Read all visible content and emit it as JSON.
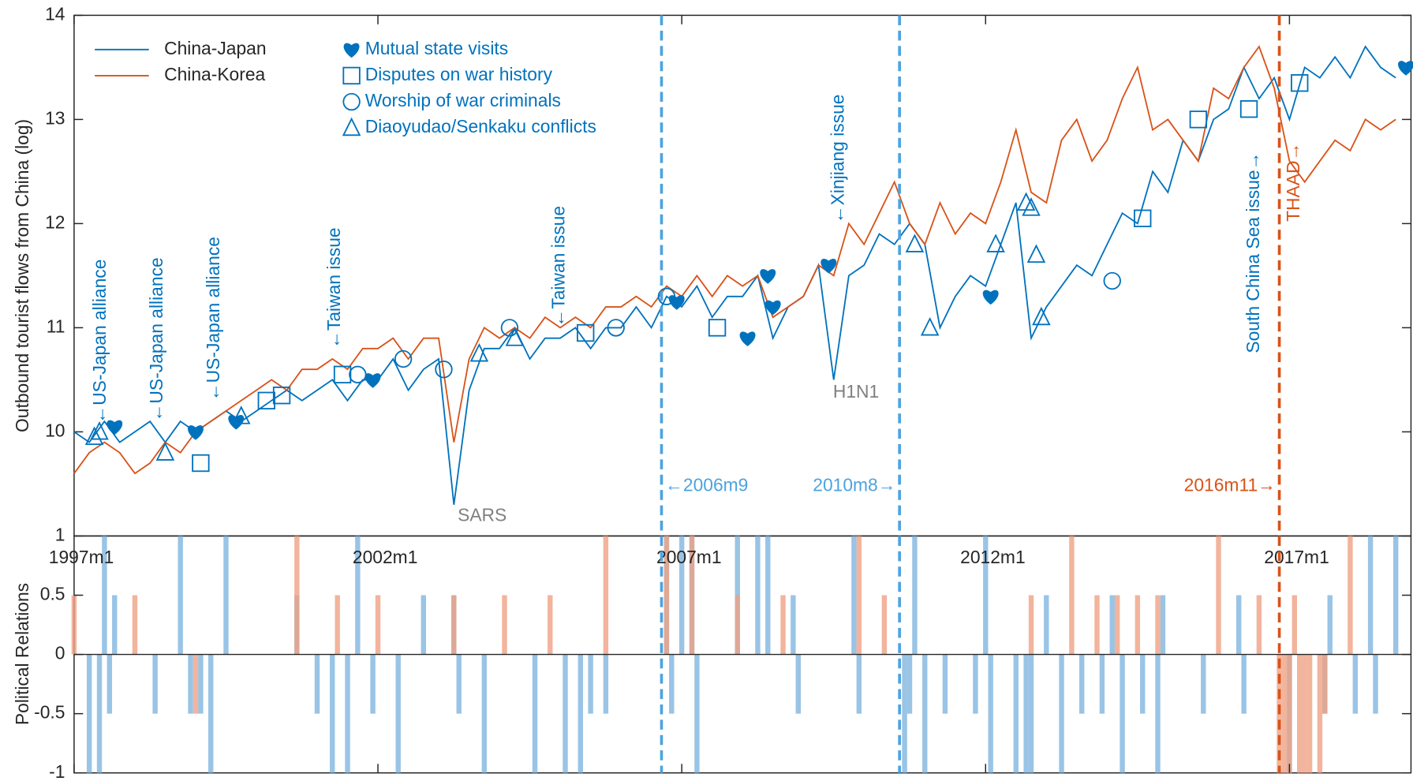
{
  "chart_data": [
    {
      "type": "line",
      "y_label": "Outbound tourist flows from China (log)",
      "xlim": [
        0,
        264
      ],
      "ylim": [
        9,
        14
      ],
      "yticks": [
        10,
        11,
        12,
        13,
        14
      ],
      "x": [
        0,
        3,
        6,
        9,
        12,
        15,
        18,
        21,
        24,
        27,
        30,
        33,
        36,
        39,
        42,
        45,
        48,
        51,
        54,
        57,
        60,
        63,
        66,
        69,
        72,
        75,
        78,
        81,
        84,
        87,
        90,
        93,
        96,
        99,
        102,
        105,
        108,
        111,
        114,
        117,
        120,
        123,
        126,
        129,
        132,
        135,
        138,
        141,
        144,
        147,
        150,
        153,
        156,
        159,
        162,
        165,
        168,
        171,
        174,
        177,
        180,
        183,
        186,
        189,
        192,
        195,
        198,
        201,
        204,
        207,
        210,
        213,
        216,
        219,
        222,
        225,
        228,
        231,
        234,
        237,
        240,
        243,
        246,
        249,
        252,
        255,
        258,
        261
      ],
      "series": [
        {
          "name": "China-Japan",
          "color": "#0072BD",
          "values": [
            10.0,
            9.9,
            10.1,
            9.9,
            10.0,
            10.1,
            9.9,
            10.1,
            10.0,
            10.1,
            10.2,
            10.1,
            10.2,
            10.3,
            10.4,
            10.3,
            10.4,
            10.5,
            10.3,
            10.5,
            10.5,
            10.7,
            10.4,
            10.6,
            10.7,
            9.3,
            10.4,
            10.8,
            10.8,
            11.0,
            10.7,
            10.9,
            10.9,
            11.0,
            10.8,
            11.0,
            11.0,
            11.2,
            11.0,
            11.3,
            11.2,
            11.4,
            11.1,
            11.3,
            11.3,
            11.5,
            10.9,
            11.2,
            11.3,
            11.6,
            10.5,
            11.5,
            11.6,
            11.9,
            11.8,
            12.0,
            11.8,
            11.0,
            11.3,
            11.5,
            11.4,
            11.8,
            12.2,
            10.9,
            11.2,
            11.4,
            11.6,
            11.5,
            11.8,
            12.1,
            12.0,
            12.5,
            12.3,
            12.8,
            12.6,
            13.0,
            13.1,
            13.5,
            13.2,
            13.4,
            13.0,
            13.5,
            13.4,
            13.6,
            13.4,
            13.7,
            13.5,
            13.4
          ]
        },
        {
          "name": "China-Korea",
          "color": "#D95319",
          "values": [
            9.6,
            9.8,
            9.9,
            9.8,
            9.6,
            9.7,
            9.9,
            9.8,
            10.0,
            10.1,
            10.2,
            10.3,
            10.4,
            10.5,
            10.4,
            10.6,
            10.6,
            10.7,
            10.6,
            10.8,
            10.8,
            10.9,
            10.7,
            10.9,
            10.9,
            9.9,
            10.7,
            11.0,
            10.9,
            11.0,
            10.9,
            11.1,
            11.0,
            11.1,
            11.0,
            11.2,
            11.2,
            11.3,
            11.2,
            11.4,
            11.3,
            11.5,
            11.3,
            11.5,
            11.4,
            11.5,
            11.1,
            11.2,
            11.3,
            11.6,
            11.5,
            12.0,
            11.8,
            12.1,
            12.4,
            12.0,
            11.8,
            12.2,
            11.9,
            12.1,
            12.0,
            12.4,
            12.9,
            12.3,
            12.2,
            12.8,
            13.0,
            12.6,
            12.8,
            13.2,
            13.5,
            12.9,
            13.0,
            12.8,
            12.6,
            13.3,
            13.2,
            13.5,
            13.7,
            13.3,
            12.6,
            12.4,
            12.6,
            12.8,
            12.7,
            13.0,
            12.9,
            13.0
          ]
        }
      ],
      "markers": [
        {
          "name": "Mutual state visits",
          "marker": "heart",
          "color": "#0072BD",
          "x": [
            8,
            24,
            32,
            59,
            119,
            133,
            137,
            138,
            149,
            181,
            263
          ],
          "values": [
            10.05,
            10.0,
            10.1,
            10.5,
            11.25,
            10.9,
            11.5,
            11.2,
            11.6,
            11.3,
            13.5
          ]
        },
        {
          "name": "Disputes on war history",
          "marker": "square",
          "color": "#0072BD",
          "x": [
            25,
            38,
            41,
            53,
            101,
            127,
            211,
            222,
            232,
            242
          ],
          "values": [
            9.7,
            10.3,
            10.35,
            10.55,
            10.95,
            11.0,
            12.05,
            13.0,
            13.1,
            13.35
          ]
        },
        {
          "name": "Worship of war criminals",
          "marker": "circle",
          "color": "#0072BD",
          "x": [
            56,
            65,
            73,
            86,
            107,
            117,
            205
          ],
          "values": [
            10.55,
            10.7,
            10.6,
            11.0,
            11.0,
            11.3,
            11.45
          ]
        },
        {
          "name": "Diaoyudao/Senkaku conflicts",
          "marker": "triangle",
          "color": "#0072BD",
          "x": [
            4,
            5,
            18,
            33,
            80,
            87,
            166,
            169,
            182,
            188,
            189,
            190,
            191
          ],
          "values": [
            9.95,
            10.0,
            9.8,
            10.15,
            10.75,
            10.9,
            11.8,
            11.0,
            11.8,
            12.2,
            12.15,
            11.7,
            11.1
          ]
        }
      ],
      "vlines": [
        {
          "x": 116,
          "label": "←2006m9",
          "color": "#4DA3DF"
        },
        {
          "x": 163,
          "label": "2010m8→",
          "color": "#4DA3DF"
        },
        {
          "x": 238,
          "label": "2016m11→",
          "color": "#D95319"
        }
      ],
      "annotations": [
        {
          "text": "←US-Japan alliance",
          "color": "#0072BD"
        },
        {
          "text": "←US-Japan alliance",
          "color": "#0072BD"
        },
        {
          "text": "←US-Japan alliance",
          "color": "#0072BD"
        },
        {
          "text": "←Taiwan issue",
          "color": "#0072BD"
        },
        {
          "text": "←Taiwan issue",
          "color": "#0072BD"
        },
        {
          "text": "←Xinjiang issue",
          "color": "#0072BD"
        },
        {
          "text": "South China Sea issue→",
          "color": "#0072BD"
        },
        {
          "text": "THAAD→",
          "color": "#D95319"
        },
        {
          "text": "SARS",
          "color": "#808080"
        },
        {
          "text": "H1N1",
          "color": "#808080"
        }
      ]
    },
    {
      "type": "bar",
      "y_label": "Political Relations",
      "xlim": [
        0,
        264
      ],
      "ylim": [
        -1,
        1
      ],
      "yticks": [
        -1,
        -0.5,
        0,
        0.5,
        1
      ],
      "xticks": [
        {
          "value": 0,
          "label": "1997m1"
        },
        {
          "value": 60,
          "label": "2002m1"
        },
        {
          "value": 120,
          "label": "2007m1"
        },
        {
          "value": 180,
          "label": "2012m1"
        },
        {
          "value": 240,
          "label": "2017m1"
        }
      ],
      "series": [
        {
          "name": "China-Japan",
          "color": "#7FB5E0",
          "x": [
            6,
            8,
            21,
            30,
            44,
            56,
            69,
            75,
            117,
            120,
            122,
            131,
            135,
            137,
            142,
            154,
            166,
            180,
            192,
            205,
            215,
            230,
            248,
            256,
            261,
            3,
            5,
            7,
            16,
            23,
            25,
            27,
            48,
            51,
            54,
            59,
            64,
            76,
            81,
            91,
            97,
            100,
            102,
            105,
            118,
            123,
            143,
            155,
            164,
            165,
            168,
            172,
            178,
            181,
            186,
            188,
            189,
            195,
            199,
            203,
            207,
            211,
            214,
            223,
            231,
            240,
            247,
            253,
            257
          ],
          "values": [
            1,
            0.5,
            1,
            1,
            0.5,
            1,
            0.5,
            0.5,
            1,
            1,
            1,
            1,
            1,
            1,
            0.5,
            1,
            1,
            1,
            0.5,
            0.5,
            0.5,
            0.5,
            0.5,
            1,
            1,
            -1,
            -1,
            -0.5,
            -0.5,
            -0.5,
            -0.5,
            -1,
            -0.5,
            -1,
            -1,
            -0.5,
            -1,
            -0.5,
            -1,
            -1,
            -1,
            -1,
            -0.5,
            -0.5,
            -0.5,
            -1,
            -0.5,
            -0.5,
            -1,
            -0.5,
            -1,
            -0.5,
            -0.5,
            -1,
            -1,
            -1,
            -1,
            -1,
            -0.5,
            -0.5,
            -1,
            -0.5,
            -1,
            -0.5,
            -0.5,
            -1,
            -0.5,
            -0.5,
            -0.5
          ]
        },
        {
          "name": "China-Korea",
          "color": "#EFA183",
          "x": [
            0,
            12,
            44,
            52,
            60,
            75,
            85,
            94,
            105,
            117,
            122,
            131,
            140,
            155,
            160,
            189,
            197,
            202,
            206,
            210,
            214,
            226,
            234,
            241,
            252,
            24,
            238,
            239,
            240,
            242,
            243,
            244,
            246,
            247
          ],
          "values": [
            0.5,
            0.5,
            1,
            0.5,
            0.5,
            0.5,
            0.5,
            0.5,
            1,
            1,
            1,
            0.5,
            0.5,
            1,
            0.5,
            0.5,
            1,
            0.5,
            0.5,
            0.5,
            0.5,
            1,
            0.5,
            0.5,
            1,
            -0.5,
            -1,
            -1,
            -1,
            -1,
            -1,
            -1,
            -1,
            -0.5
          ]
        }
      ]
    }
  ]
}
